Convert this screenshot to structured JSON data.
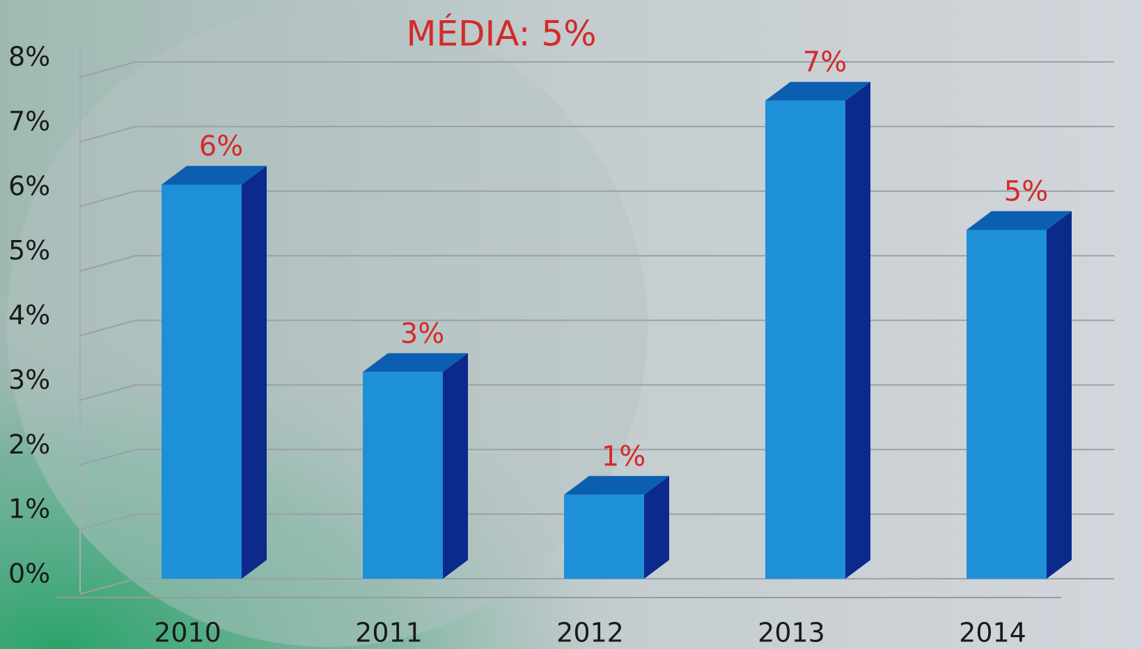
{
  "chart_data": {
    "type": "bar3d",
    "title": "MÉDIA: 5%",
    "categories": [
      "2010",
      "2011",
      "2012",
      "2013",
      "2014"
    ],
    "values": [
      6.1,
      3.2,
      1.3,
      7.4,
      5.4
    ],
    "value_labels": [
      "6%",
      "3%",
      "1%",
      "7%",
      "5%"
    ],
    "color": "#1e90d8",
    "ylim": [
      0,
      8
    ],
    "yticks": [
      {
        "value": 0,
        "label": "0%"
      },
      {
        "value": 1,
        "label": "1%"
      },
      {
        "value": 2,
        "label": "2%"
      },
      {
        "value": 3,
        "label": "3%"
      },
      {
        "value": 4,
        "label": "4%"
      },
      {
        "value": 5,
        "label": "5%"
      },
      {
        "value": 6,
        "label": "6%"
      },
      {
        "value": 7,
        "label": "7%"
      },
      {
        "value": 8,
        "label": "8%"
      }
    ],
    "grid": true
  }
}
